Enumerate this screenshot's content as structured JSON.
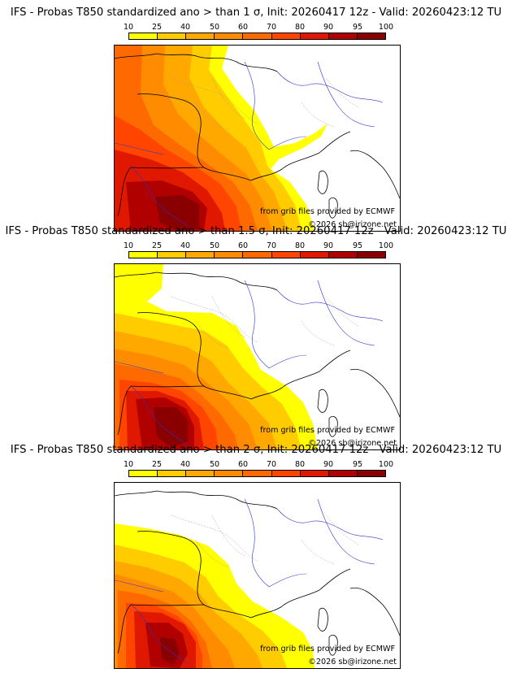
{
  "colorbar": {
    "ticks": [
      "10",
      "25",
      "40",
      "50",
      "60",
      "70",
      "80",
      "90",
      "95",
      "100"
    ],
    "colors": [
      "#ffff00",
      "#ffcc00",
      "#ffa800",
      "#ff8c00",
      "#ff6a00",
      "#ff4500",
      "#e01800",
      "#b00000",
      "#8a0000"
    ]
  },
  "panels": [
    {
      "title": "IFS - Probas T850  standardized ano > than 1 σ, Init: 20260417 12z - Valid: 20260423:12 TU",
      "threshold": "1 σ",
      "grib_credit": "from grib files provided by ECMWF",
      "copyright": "©2026 sb@irizone.net"
    },
    {
      "title": "IFS - Probas T850  standardized ano > than 1.5 σ, Init: 20260417 12z - Valid: 20260423:12 TU",
      "threshold": "1.5 σ",
      "grib_credit": "from grib files provided by ECMWF",
      "copyright": "©2026 sb@irizone.net"
    },
    {
      "title": "IFS - Probas T850  standardized ano > than 2 σ, Init: 20260417 12z - Valid: 20260423:12 TU",
      "threshold": "2 σ",
      "grib_credit": "from grib files provided by ECMWF",
      "copyright": "©2026 sb@irizone.net"
    }
  ]
}
